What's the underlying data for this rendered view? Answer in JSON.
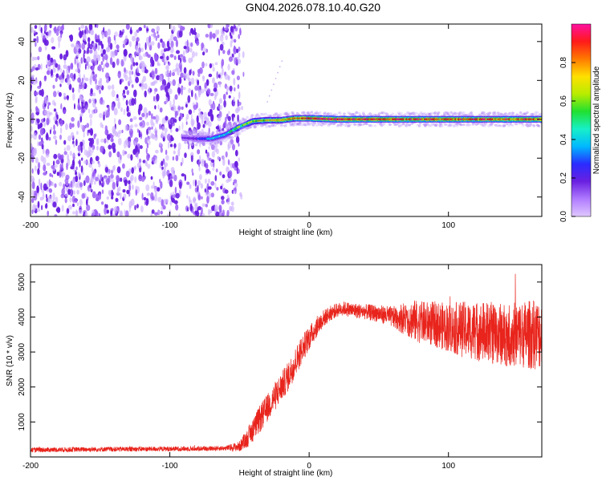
{
  "figure_title": "GN04.2026.078.10.40.G20",
  "colors": {
    "snr_line": "#e8241c",
    "frame": "#000000",
    "spectro_low": "#8a5cf0",
    "colorbar_stops": [
      "#e0c8ff",
      "#b07cff",
      "#6a20e0",
      "#2a2cff",
      "#00b8ff",
      "#18f0c8",
      "#20e030",
      "#b8ec00",
      "#ffe000",
      "#ff7a00",
      "#ff1a1a",
      "#ff10a0"
    ]
  },
  "chart_data": [
    {
      "type": "heatmap",
      "title": "",
      "xlabel": "Height of straight line (km)",
      "ylabel": "Frequency (Hz)",
      "xlim": [
        -200,
        167
      ],
      "ylim": [
        -50,
        49
      ],
      "xticks": [
        -200,
        -100,
        0,
        100
      ],
      "xtick_labels": [
        "-200",
        "-100",
        "0",
        "100"
      ],
      "yticks": [
        -40,
        -20,
        0,
        20,
        40
      ],
      "ytick_labels": [
        "-40",
        "-20",
        "0",
        "20",
        "40"
      ],
      "colorbar": {
        "label": "Normalized spectral amplitude",
        "range": [
          0,
          1
        ],
        "ticks": [
          0,
          0.2,
          0.4,
          0.6,
          0.8
        ],
        "tick_labels": [
          "0.0",
          "0.2",
          "0.4",
          "0.6",
          "0.8"
        ]
      },
      "noise_region_x": [
        -200,
        -50
      ],
      "ridge": [
        {
          "x": -90,
          "f": -9.5,
          "amp": 0.18
        },
        {
          "x": -80,
          "f": -10,
          "amp": 0.22
        },
        {
          "x": -70,
          "f": -10,
          "amp": 0.35
        },
        {
          "x": -60,
          "f": -8,
          "amp": 0.45
        },
        {
          "x": -50,
          "f": -4,
          "amp": 0.55
        },
        {
          "x": -40,
          "f": -1,
          "amp": 0.6
        },
        {
          "x": -30,
          "f": -0.5,
          "amp": 0.65
        },
        {
          "x": -20,
          "f": -0.5,
          "amp": 0.75
        },
        {
          "x": -10,
          "f": 0.5,
          "amp": 0.8
        },
        {
          "x": 0,
          "f": 0.5,
          "amp": 0.95
        },
        {
          "x": 20,
          "f": 0,
          "amp": 0.95
        },
        {
          "x": 40,
          "f": 0,
          "amp": 0.9
        },
        {
          "x": 60,
          "f": 0,
          "amp": 0.88
        },
        {
          "x": 80,
          "f": 0,
          "amp": 0.86
        },
        {
          "x": 100,
          "f": 0,
          "amp": 0.85
        },
        {
          "x": 120,
          "f": 0,
          "amp": 0.85
        },
        {
          "x": 140,
          "f": 0,
          "amp": 0.85
        },
        {
          "x": 160,
          "f": 0,
          "amp": 0.85
        },
        {
          "x": 167,
          "f": 0,
          "amp": 0.85
        }
      ]
    },
    {
      "type": "line",
      "title": "",
      "xlabel": "Height of straight line (km)",
      "ylabel": "SNR (10 * v/v)",
      "xlim": [
        -200,
        167
      ],
      "ylim": [
        0,
        5500
      ],
      "xticks": [
        -200,
        -100,
        0,
        100
      ],
      "xtick_labels": [
        "-200",
        "-100",
        "0",
        "100"
      ],
      "yticks": [
        1000,
        2000,
        3000,
        4000,
        5000
      ],
      "ytick_labels": [
        "1000",
        "2000",
        "3000",
        "4000",
        "5000"
      ],
      "series": [
        {
          "name": "SNR",
          "x": [
            -200,
            -150,
            -100,
            -60,
            -50,
            -45,
            -40,
            -35,
            -30,
            -25,
            -20,
            -15,
            -10,
            -5,
            0,
            5,
            10,
            15,
            20,
            25,
            30,
            40,
            50,
            60,
            70,
            75,
            80,
            90,
            100,
            110,
            120,
            130,
            140,
            150,
            160,
            167
          ],
          "mean": [
            200,
            220,
            230,
            250,
            300,
            500,
            800,
            1100,
            1400,
            1700,
            2000,
            2300,
            2700,
            3100,
            3400,
            3700,
            3950,
            4100,
            4200,
            4250,
            4200,
            4150,
            4100,
            4000,
            3950,
            3900,
            3850,
            3800,
            3700,
            3650,
            3600,
            3550,
            3500,
            3500,
            3500,
            3500
          ],
          "spread": [
            70,
            70,
            70,
            70,
            150,
            250,
            350,
            400,
            400,
            420,
            420,
            420,
            420,
            400,
            350,
            300,
            250,
            220,
            200,
            200,
            220,
            220,
            250,
            300,
            500,
            600,
            600,
            650,
            700,
            800,
            850,
            900,
            900,
            950,
            1000,
            1000
          ]
        }
      ]
    }
  ]
}
